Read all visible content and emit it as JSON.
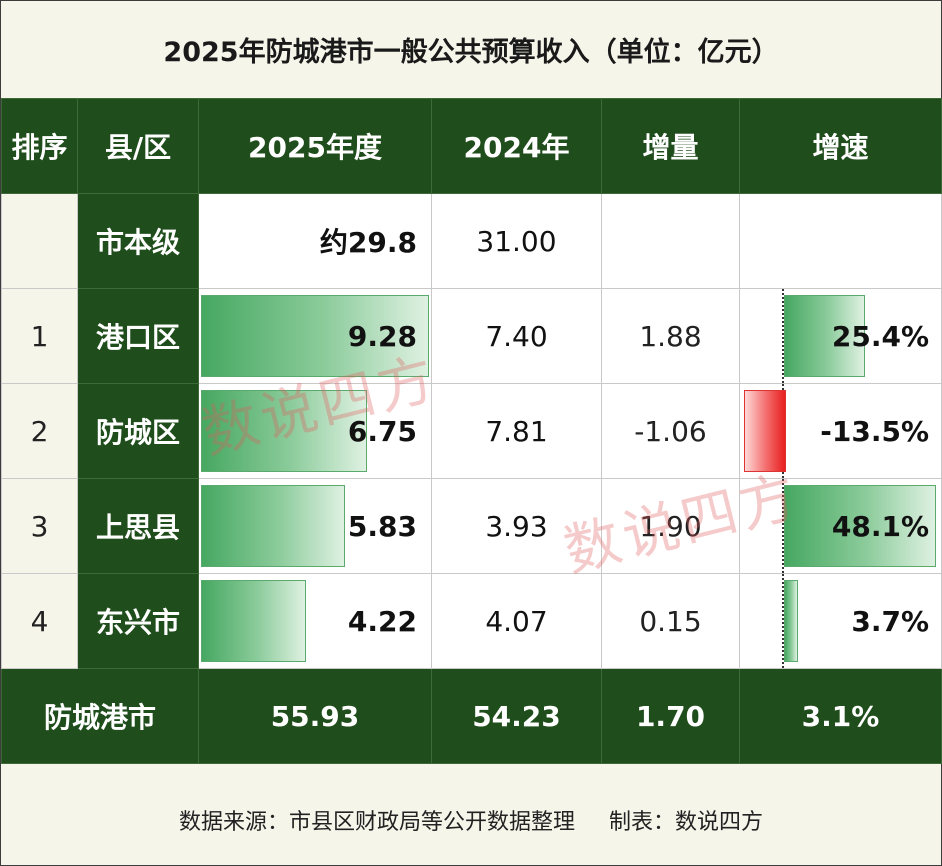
{
  "title": "2025年防城港市一般公共预算收入（单位：亿元）",
  "headers": [
    "排序",
    "县/区",
    "2025年度",
    "2024年",
    "增量",
    "增速"
  ],
  "rows": [
    {
      "rank": "",
      "name": "市本级",
      "y2025": "约29.8",
      "y2024": "31.00",
      "delta": "",
      "growth": "",
      "growth_pct": null,
      "bar_ratio": null
    },
    {
      "rank": "1",
      "name": "港口区",
      "y2025": "9.28",
      "y2024": "7.40",
      "delta": "1.88",
      "growth": "25.4%",
      "growth_pct": 25.4,
      "bar_ratio": 9.28
    },
    {
      "rank": "2",
      "name": "防城区",
      "y2025": "6.75",
      "y2024": "7.81",
      "delta": "-1.06",
      "growth": "-13.5%",
      "growth_pct": -13.5,
      "bar_ratio": 6.75
    },
    {
      "rank": "3",
      "name": "上思县",
      "y2025": "5.83",
      "y2024": "3.93",
      "delta": "1.90",
      "growth": "48.1%",
      "growth_pct": 48.1,
      "bar_ratio": 5.83
    },
    {
      "rank": "4",
      "name": "东兴市",
      "y2025": "4.22",
      "y2024": "4.07",
      "delta": "0.15",
      "growth": "3.7%",
      "growth_pct": 3.7,
      "bar_ratio": 4.22
    }
  ],
  "total": {
    "name": "防城港市",
    "y2025": "55.93",
    "y2024": "54.23",
    "delta": "1.70",
    "growth": "3.1%"
  },
  "footer": {
    "source": "数据来源：市县区财政局等公开数据整理",
    "maker": "制表：数说四方"
  },
  "watermark": "数说四方",
  "colors": {
    "header_bg": "#1f4d1b",
    "bar_green": "#46a861",
    "bar_red": "#e81f1f",
    "page_bg": "#f5f5ea"
  }
}
